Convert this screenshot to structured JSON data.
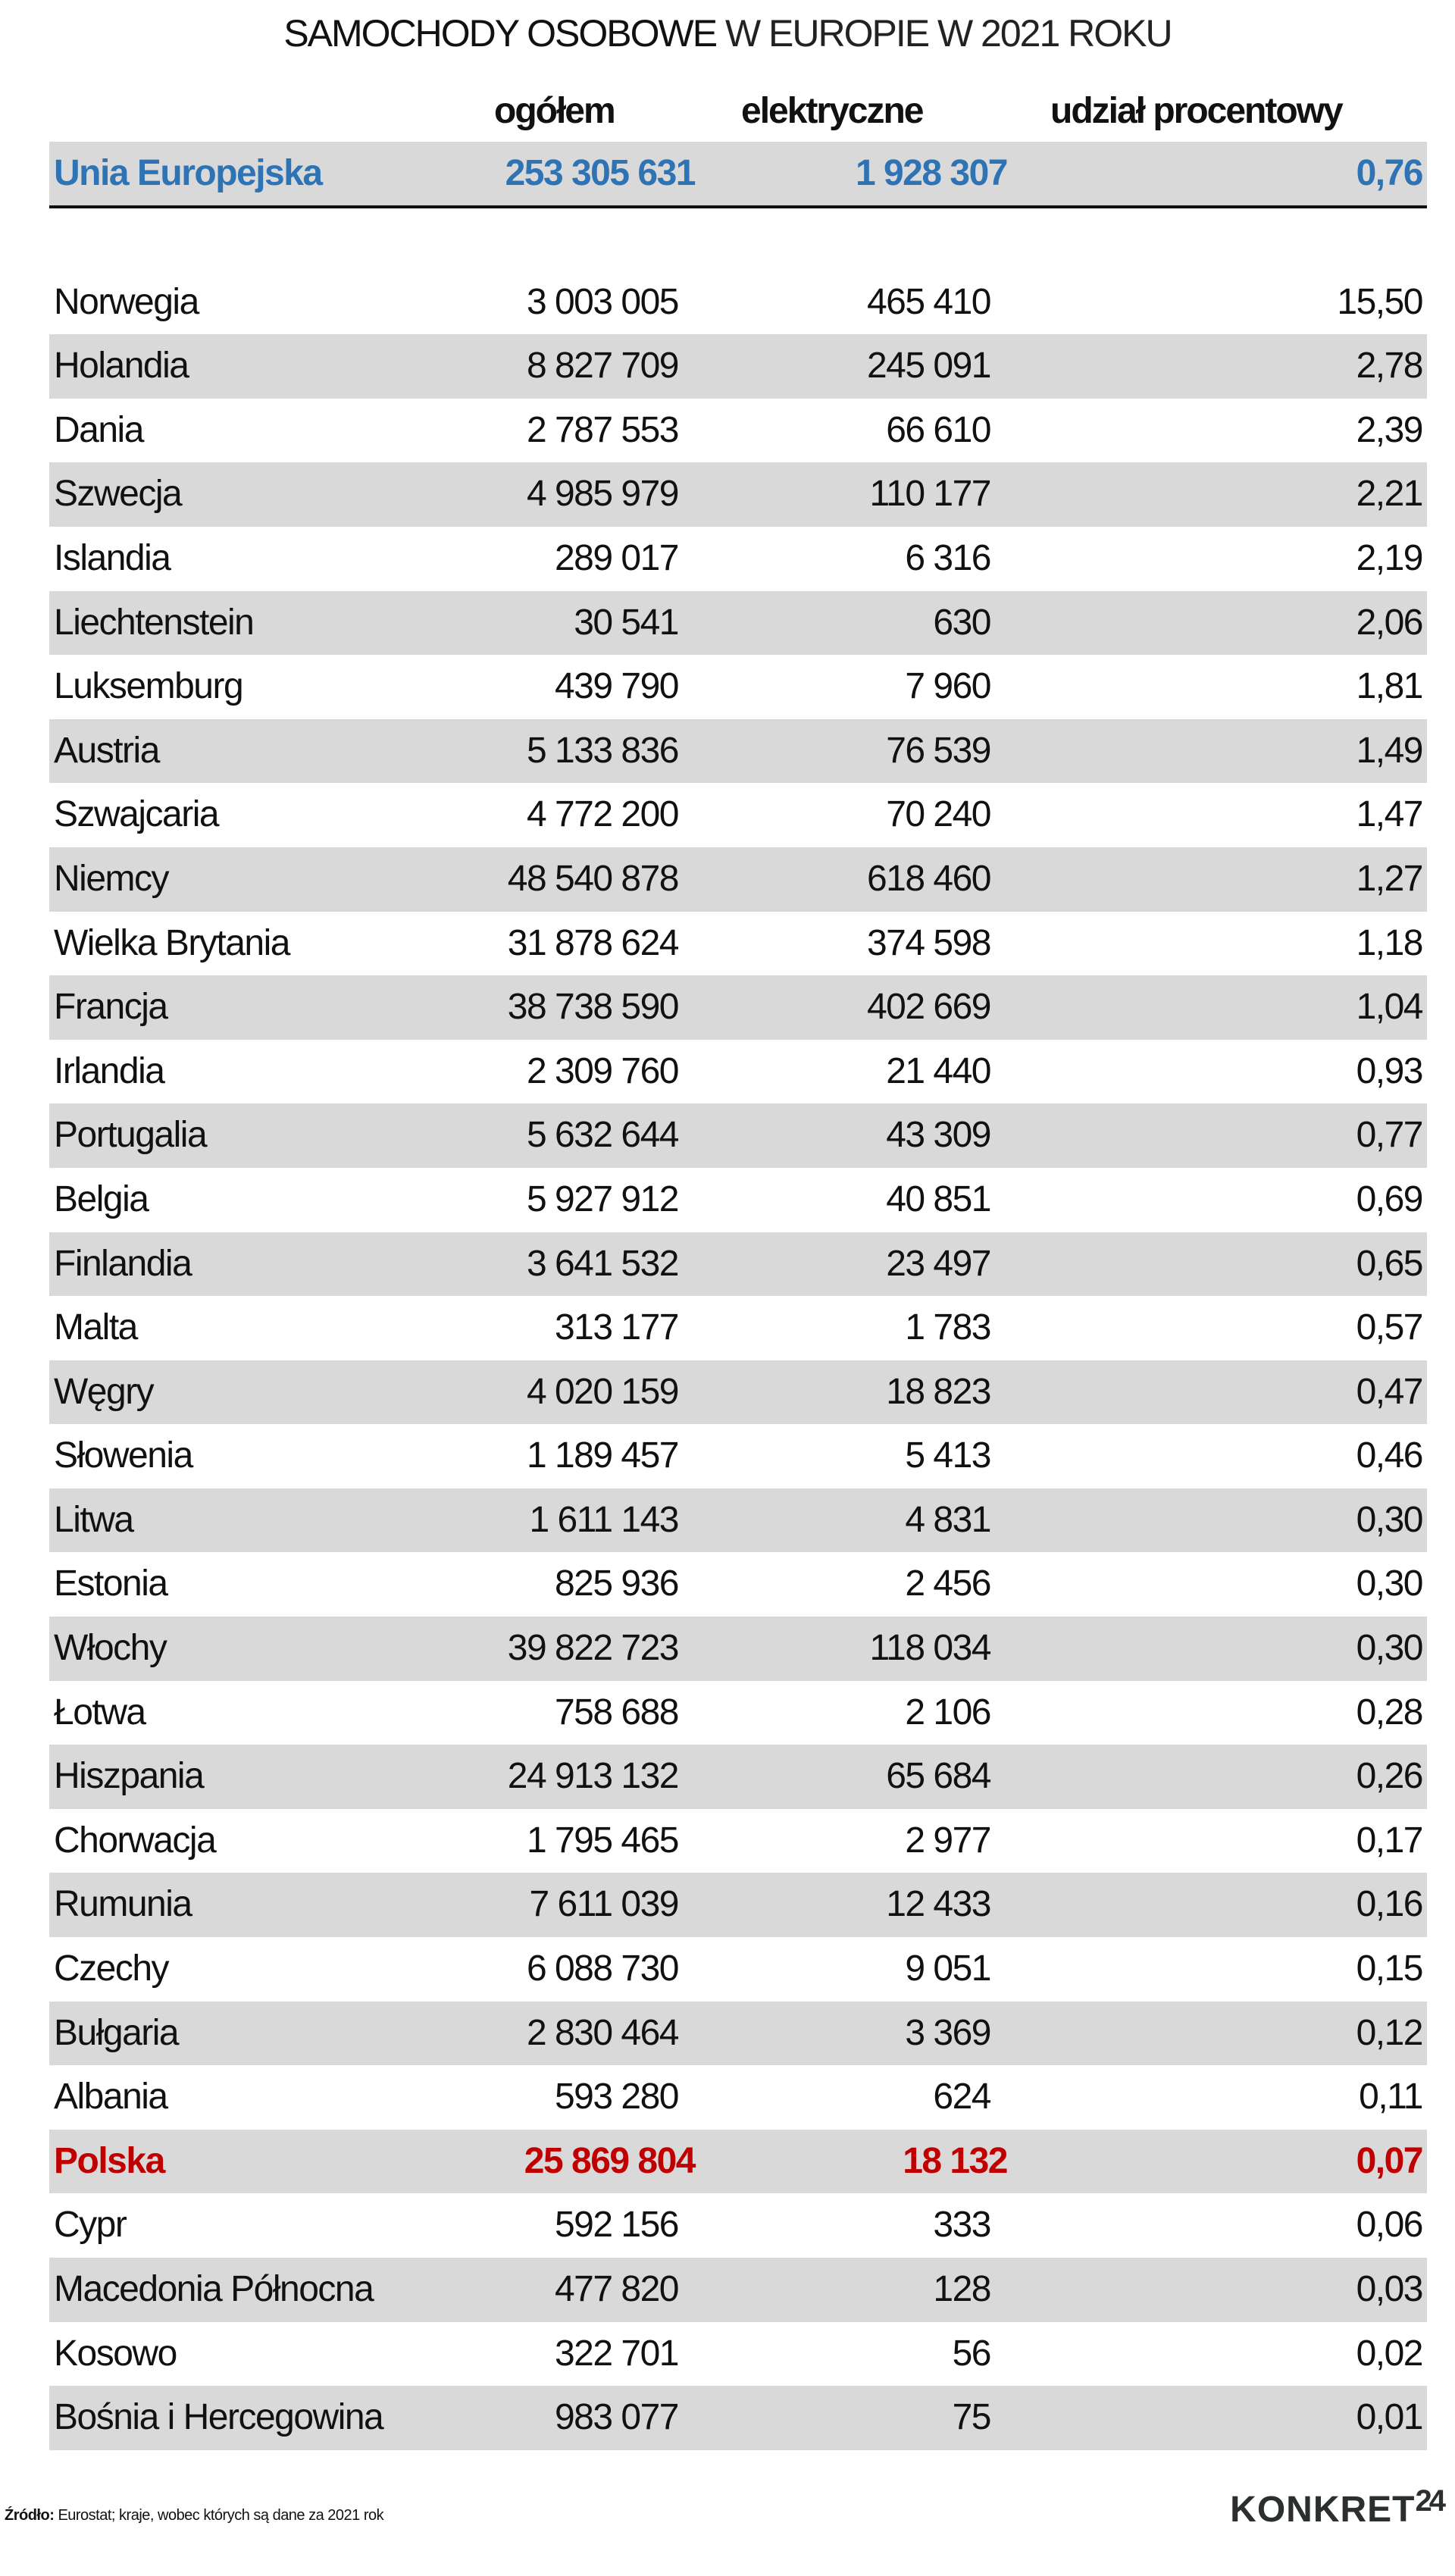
{
  "title": {
    "bold": "SAMOCHODY OSOBOWE",
    "light": "W EUROPIE W 2021 ROKU"
  },
  "columns": {
    "total": "ogółem",
    "electric": "elektryczne",
    "share": "udział procentowy"
  },
  "colors": {
    "eu": "#2e74b5",
    "highlight": "#c00000",
    "stripe": "#d9d9d9"
  },
  "eu": {
    "name": "Unia Europejska",
    "total": "253 305 631",
    "electric": "1 928 307",
    "share": "0,76"
  },
  "rows": [
    {
      "name": "Norwegia",
      "total": "3 003 005",
      "electric": "465 410",
      "share": "15,50"
    },
    {
      "name": "Holandia",
      "total": "8 827 709",
      "electric": "245 091",
      "share": "2,78"
    },
    {
      "name": "Dania",
      "total": "2 787 553",
      "electric": "66 610",
      "share": "2,39"
    },
    {
      "name": "Szwecja",
      "total": "4 985 979",
      "electric": "110 177",
      "share": "2,21"
    },
    {
      "name": "Islandia",
      "total": "289 017",
      "electric": "6 316",
      "share": "2,19"
    },
    {
      "name": "Liechtenstein",
      "total": "30 541",
      "electric": "630",
      "share": "2,06"
    },
    {
      "name": "Luksemburg",
      "total": "439 790",
      "electric": "7 960",
      "share": "1,81"
    },
    {
      "name": "Austria",
      "total": "5 133 836",
      "electric": "76 539",
      "share": "1,49"
    },
    {
      "name": "Szwajcaria",
      "total": "4 772 200",
      "electric": "70 240",
      "share": "1,47"
    },
    {
      "name": "Niemcy",
      "total": "48 540 878",
      "electric": "618 460",
      "share": "1,27"
    },
    {
      "name": "Wielka Brytania",
      "total": "31 878 624",
      "electric": "374 598",
      "share": "1,18"
    },
    {
      "name": "Francja",
      "total": "38 738 590",
      "electric": "402 669",
      "share": "1,04"
    },
    {
      "name": "Irlandia",
      "total": "2 309 760",
      "electric": "21 440",
      "share": "0,93"
    },
    {
      "name": "Portugalia",
      "total": "5 632 644",
      "electric": "43 309",
      "share": "0,77"
    },
    {
      "name": "Belgia",
      "total": "5 927 912",
      "electric": "40 851",
      "share": "0,69"
    },
    {
      "name": "Finlandia",
      "total": "3 641 532",
      "electric": "23 497",
      "share": "0,65"
    },
    {
      "name": "Malta",
      "total": "313 177",
      "electric": "1 783",
      "share": "0,57"
    },
    {
      "name": "Węgry",
      "total": "4 020 159",
      "electric": "18 823",
      "share": "0,47"
    },
    {
      "name": "Słowenia",
      "total": "1 189 457",
      "electric": "5 413",
      "share": "0,46"
    },
    {
      "name": "Litwa",
      "total": "1 611 143",
      "electric": "4 831",
      "share": "0,30"
    },
    {
      "name": "Estonia",
      "total": "825 936",
      "electric": "2 456",
      "share": "0,30"
    },
    {
      "name": "Włochy",
      "total": "39 822 723",
      "electric": "118 034",
      "share": "0,30"
    },
    {
      "name": "Łotwa",
      "total": "758 688",
      "electric": "2 106",
      "share": "0,28"
    },
    {
      "name": "Hiszpania",
      "total": "24 913 132",
      "electric": "65 684",
      "share": "0,26"
    },
    {
      "name": "Chorwacja",
      "total": "1 795 465",
      "electric": "2 977",
      "share": "0,17"
    },
    {
      "name": "Rumunia",
      "total": "7 611 039",
      "electric": "12 433",
      "share": "0,16"
    },
    {
      "name": "Czechy",
      "total": "6 088 730",
      "electric": "9 051",
      "share": "0,15"
    },
    {
      "name": "Bułgaria",
      "total": "2 830 464",
      "electric": "3 369",
      "share": "0,12"
    },
    {
      "name": "Albania",
      "total": "593 280",
      "electric": "624",
      "share": "0,11"
    },
    {
      "name": "Polska",
      "total": "25 869 804",
      "electric": "18 132",
      "share": "0,07",
      "highlight": true
    },
    {
      "name": "Cypr",
      "total": "592 156",
      "electric": "333",
      "share": "0,06"
    },
    {
      "name": "Macedonia Północna",
      "total": "477 820",
      "electric": "128",
      "share": "0,03"
    },
    {
      "name": "Kosowo",
      "total": "322 701",
      "electric": "56",
      "share": "0,02"
    },
    {
      "name": "Bośnia i Hercegowina",
      "total": "983 077",
      "electric": "75",
      "share": "0,01"
    }
  ],
  "footer": {
    "source_label": "Źródło:",
    "source_text": "Eurostat; kraje, wobec których są dane za 2021 rok",
    "logo": "KONKRET",
    "logo_suffix": "24"
  }
}
